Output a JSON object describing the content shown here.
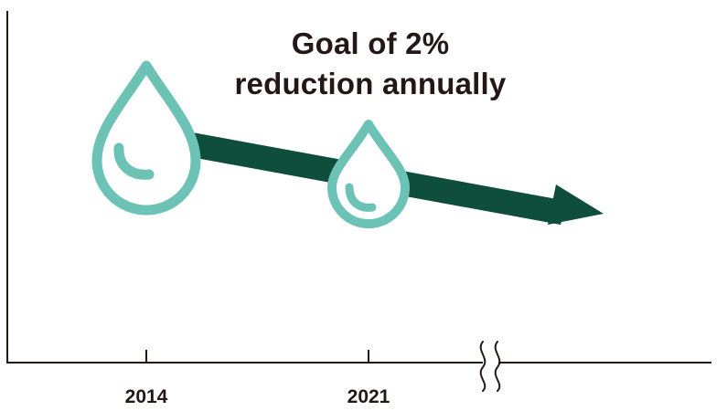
{
  "headline": {
    "line1": "Goal of 2%",
    "line2": "reduction annually"
  },
  "x_axis": {
    "ticks": [
      "2014",
      "2021"
    ],
    "axis_break": true
  },
  "icons": [
    "water-drop-icon",
    "water-drop-icon"
  ],
  "trend": {
    "direction": "down-right arrow"
  },
  "colors": {
    "drop": "#6cc3b5",
    "arrow": "#0f4e3c",
    "axis": "#231815",
    "text": "#231815"
  }
}
